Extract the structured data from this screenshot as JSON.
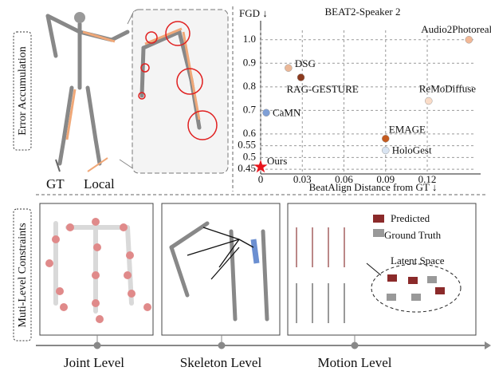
{
  "chart_data": {
    "type": "scatter",
    "title": "BEAT2-Speaker 2",
    "y_label": "FGD ↓",
    "x_label": "BeatAlign Distance from GT ↓",
    "xlim": [
      0,
      0.155
    ],
    "ylim": [
      0.43,
      1.04
    ],
    "xticks": [
      0,
      0.03,
      0.06,
      0.09,
      0.12
    ],
    "yticks": [
      0.45,
      0.5,
      0.55,
      0.6,
      0.7,
      0.8,
      0.9,
      {
        "value": 1,
        "label": "1.0"
      }
    ],
    "series": [
      {
        "name": "Audio2Photoreal",
        "color": "#f2b896",
        "x": [
          0.15
        ],
        "values": [
          1.0
        ]
      },
      {
        "name": "DSG",
        "color": "#ebb898",
        "x": [
          0.02
        ],
        "values": [
          0.88
        ]
      },
      {
        "name": "RAG-GESTURE",
        "color": "#8b3a1e",
        "x": [
          0.029
        ],
        "values": [
          0.84
        ]
      },
      {
        "name": "ReMoDiffuse",
        "color": "#fadcc8",
        "x": [
          0.121
        ],
        "values": [
          0.74
        ]
      },
      {
        "name": "CaMN",
        "color": "#7f9fd6",
        "x": [
          0.004
        ],
        "values": [
          0.69
        ]
      },
      {
        "name": "EMAGE",
        "color": "#c45a1e",
        "x": [
          0.09
        ],
        "values": [
          0.58
        ]
      },
      {
        "name": "HoloGest",
        "color": "#d9e4f2",
        "x": [
          0.09
        ],
        "values": [
          0.53
        ]
      },
      {
        "name": "Ours",
        "color": "#e8141c",
        "x": [
          0
        ],
        "values": [
          0.46
        ]
      }
    ]
  },
  "labels": {
    "error_accumulation": "Error Accumulation",
    "gt": "GT",
    "local": "Local",
    "constraints": "Muti-Level Constraints",
    "predicted": "Predicted",
    "ground_truth": "Ground Truth",
    "latent_space": "Latent Space",
    "joint_level": "Joint Level",
    "skeleton_level": "Skeleton Level",
    "motion_level": "Motion Level"
  }
}
